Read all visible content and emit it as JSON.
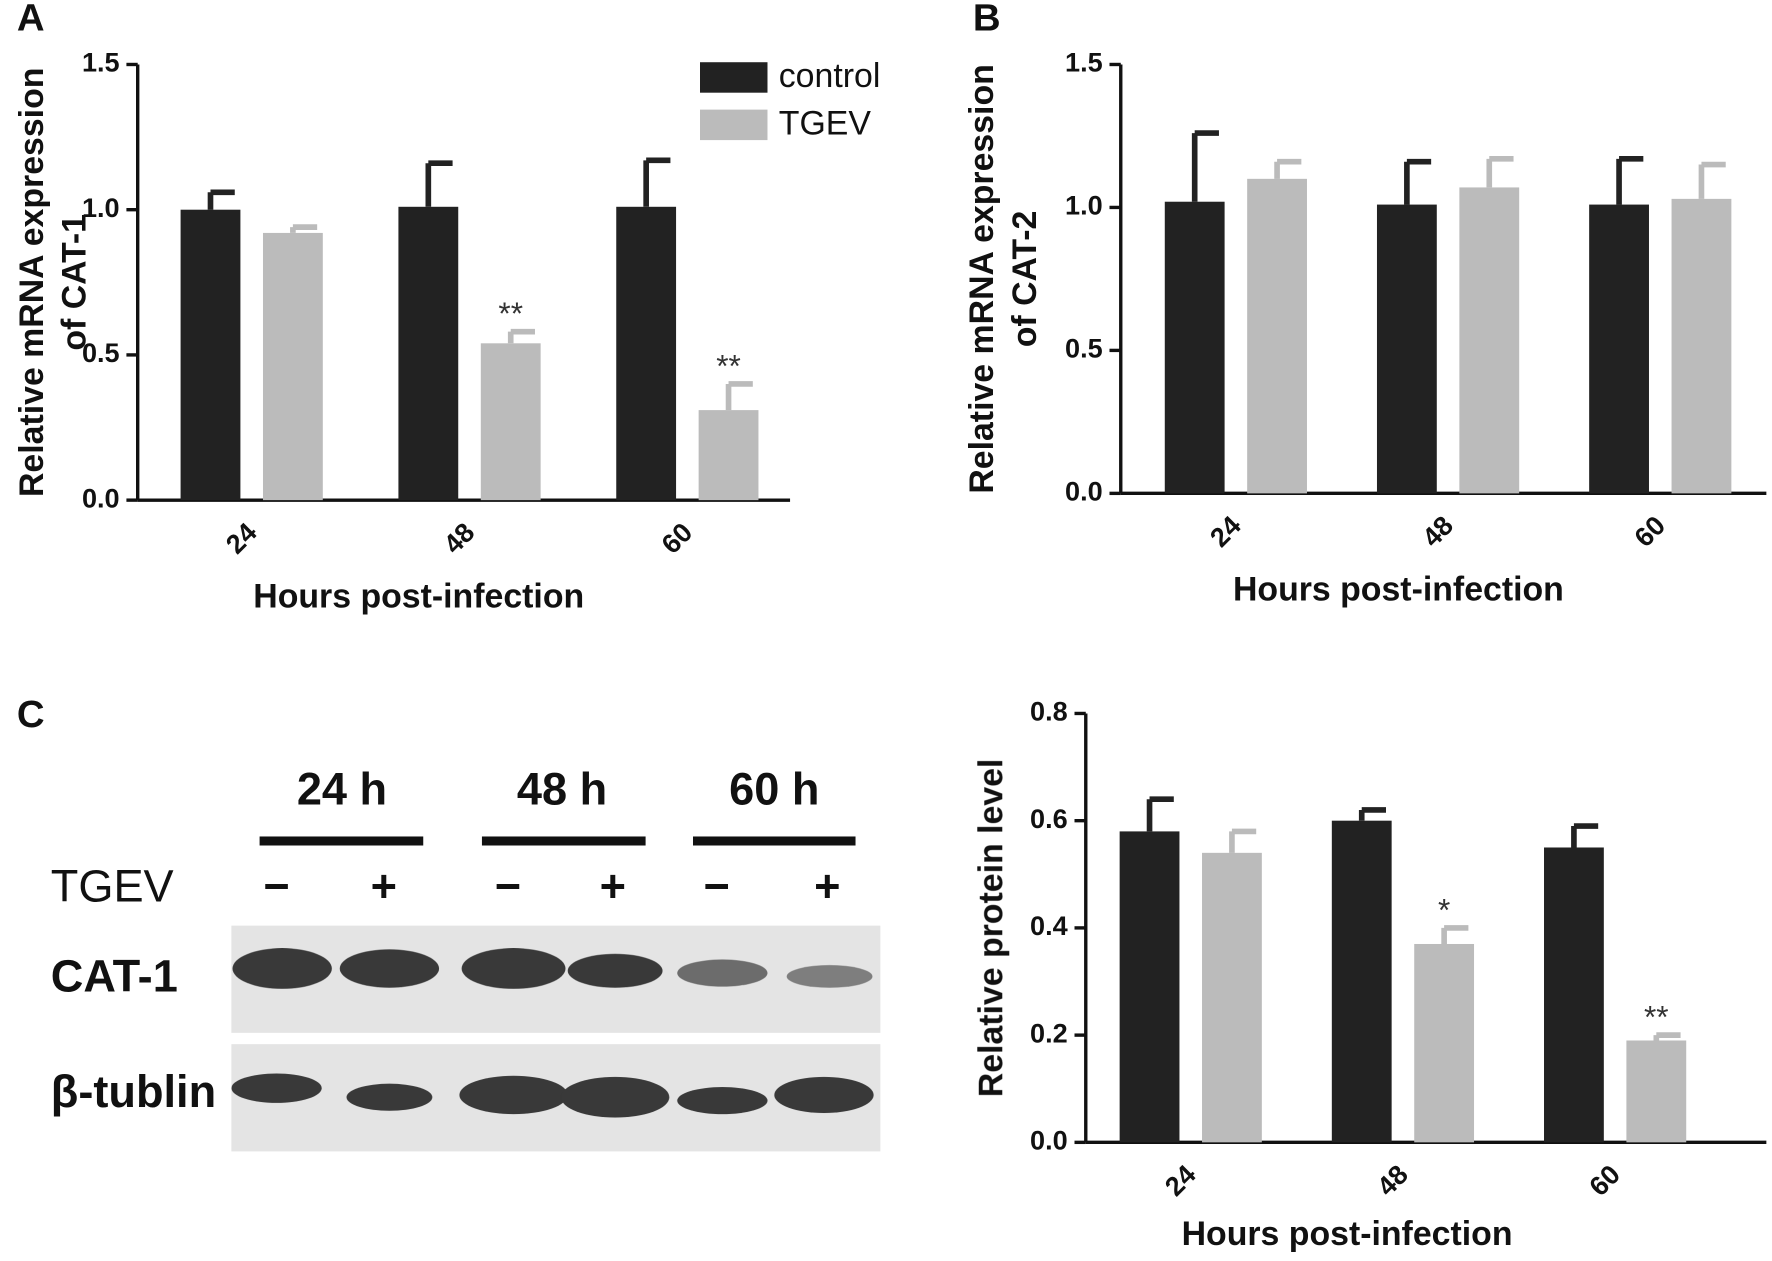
{
  "panels": [
    "A",
    "B",
    "C"
  ],
  "blot": {
    "times": [
      "24 h",
      "48 h",
      "60 h"
    ],
    "treatment": "TGEV",
    "signs": [
      "−",
      "+",
      "−",
      "+",
      "−",
      "+"
    ],
    "rows": [
      "CAT-1",
      "β-tublin"
    ]
  },
  "chart_data": [
    {
      "type": "bar",
      "xlabel": "Hours post-infection",
      "ylabel": [
        "Relative mRNA expression",
        "of CAT-1"
      ],
      "categories": [
        "24",
        "48",
        "60"
      ],
      "series": [
        {
          "name": "control",
          "color": "#222222",
          "values": [
            1.0,
            1.01,
            1.01
          ],
          "errors": [
            0.06,
            0.15,
            0.16
          ]
        },
        {
          "name": "TGEV",
          "color": "#bbbbbb",
          "values": [
            0.92,
            0.54,
            0.31
          ],
          "errors": [
            0.02,
            0.04,
            0.09
          ],
          "annotations": [
            null,
            "**",
            "**"
          ]
        }
      ],
      "ylim": [
        0,
        1.5
      ],
      "yticks": [
        {
          "value": 0,
          "label": "0.0"
        },
        0.5,
        {
          "value": 1,
          "label": "1.0"
        },
        1.5
      ],
      "legend": true
    },
    {
      "type": "bar",
      "xlabel": "Hours post-infection",
      "ylabel": [
        "Relative mRNA expression",
        "of CAT-2"
      ],
      "categories": [
        "24",
        "48",
        "60"
      ],
      "series": [
        {
          "name": "control",
          "color": "#222222",
          "values": [
            1.02,
            1.01,
            1.01
          ],
          "errors": [
            0.24,
            0.15,
            0.16
          ]
        },
        {
          "name": "TGEV",
          "color": "#bbbbbb",
          "values": [
            1.1,
            1.07,
            1.03
          ],
          "errors": [
            0.06,
            0.1,
            0.12
          ]
        }
      ],
      "ylim": [
        0,
        1.5
      ],
      "yticks": [
        {
          "value": 0,
          "label": "0.0"
        },
        0.5,
        {
          "value": 1,
          "label": "1.0"
        },
        1.5
      ],
      "legend": false
    },
    {
      "type": "bar",
      "xlabel": "Hours post-infection",
      "ylabel": [
        "Relative protein level"
      ],
      "categories": [
        "24",
        "48",
        "60"
      ],
      "series": [
        {
          "name": "control",
          "color": "#222222",
          "values": [
            0.58,
            0.6,
            0.55
          ],
          "errors": [
            0.06,
            0.02,
            0.04
          ]
        },
        {
          "name": "TGEV",
          "color": "#bbbbbb",
          "values": [
            0.54,
            0.37,
            0.19
          ],
          "errors": [
            0.04,
            0.03,
            0.01
          ],
          "annotations": [
            null,
            "*",
            "**"
          ]
        }
      ],
      "ylim": [
        0,
        0.8
      ],
      "yticks": [
        {
          "value": 0,
          "label": "0.0"
        },
        0.2,
        0.4,
        0.6,
        0.8
      ],
      "legend": false
    }
  ]
}
